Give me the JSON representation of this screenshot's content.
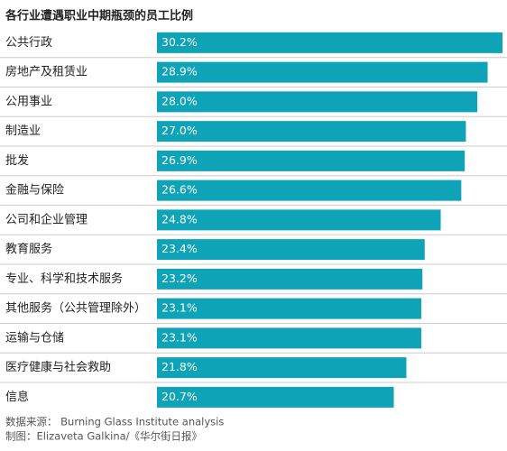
{
  "chart_data": {
    "type": "hbar",
    "title": "各行业遭遇职业中期瓶颈的员工比例",
    "categories": [
      "公共行政",
      "房地产及租赁业",
      "公用事业",
      "制造业",
      "批发",
      "金融与保险",
      "公司和企业管理",
      "教育服务",
      "专业、科学和技术服务",
      "其他服务（公共管理除外）",
      "运输与仓储",
      "医疗健康与社会救助",
      "信息"
    ],
    "values": [
      30.2,
      28.9,
      28.0,
      27.0,
      26.9,
      26.6,
      24.8,
      23.4,
      23.2,
      23.1,
      23.1,
      21.8,
      20.7
    ],
    "value_labels": [
      "30.2%",
      "28.9%",
      "28.0%",
      "27.0%",
      "26.9%",
      "26.6%",
      "24.8%",
      "23.4%",
      "23.2%",
      "23.1%",
      "23.1%",
      "21.8%",
      "20.7%"
    ],
    "color": "#0fa3b8",
    "source": "数据来源： Burning Glass Institute analysis",
    "credit": "制图：Elizaveta Galkina/《华尔街日报》"
  }
}
